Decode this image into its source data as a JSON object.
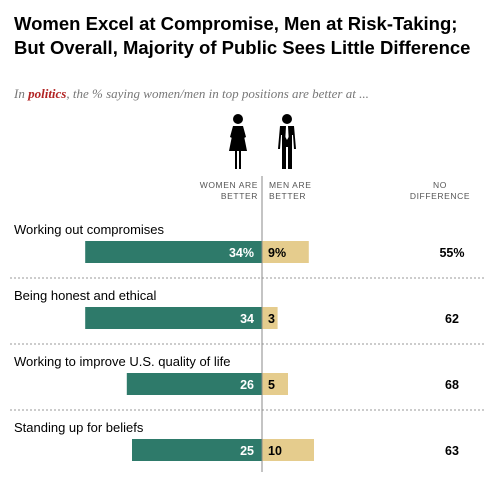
{
  "title": "Women Excel at Compromise, Men at Risk-Taking; But Overall, Majority of Public Sees Little Difference",
  "subtitle": {
    "prefix": "In ",
    "highlight": "politics",
    "suffix": ", the % saying women/men in top positions are better at ..."
  },
  "columns": {
    "women": [
      "WOMEN ARE",
      "BETTER"
    ],
    "men": [
      "MEN ARE",
      "BETTER"
    ],
    "none": [
      "NO",
      "DIFFERENCE"
    ]
  },
  "icons": [
    "woman-icon",
    "man-icon"
  ],
  "colors": {
    "women": "#2e7a6a",
    "men": "#e5cc8d",
    "divider": "#888888",
    "separator": "#999999"
  },
  "chart_data": {
    "type": "bar",
    "categories": [
      "Working out compromises",
      "Being honest and ethical",
      "Working to improve U.S. quality of life",
      "Standing up for beliefs"
    ],
    "series": [
      {
        "name": "Women are better",
        "values": [
          34,
          34,
          26,
          25
        ]
      },
      {
        "name": "Men are better",
        "values": [
          9,
          3,
          5,
          10
        ]
      },
      {
        "name": "No difference",
        "values": [
          55,
          62,
          68,
          63
        ]
      }
    ],
    "labels": {
      "women": [
        "34%",
        "34",
        "26",
        "25"
      ],
      "men": [
        "9%",
        "3",
        "5",
        "10"
      ],
      "none": [
        "55%",
        "62",
        "68",
        "63"
      ]
    },
    "title": "Women Excel at Compromise, Men at Risk-Taking; But Overall, Majority of Public Sees Little Difference"
  }
}
